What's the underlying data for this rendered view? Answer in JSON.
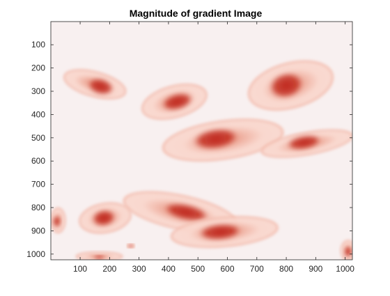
{
  "chart_data": {
    "type": "heatmap",
    "title": "Magnitude of gradient Image",
    "xlabel": "",
    "ylabel": "",
    "image_width": 1024,
    "image_height": 1024,
    "xlim": [
      0.5,
      1024.5
    ],
    "ylim": [
      0.5,
      1024.5
    ],
    "y_axis_direction": "reversed",
    "x_ticks": [
      100,
      200,
      300,
      400,
      500,
      600,
      700,
      800,
      900,
      1000
    ],
    "y_ticks": [
      100,
      200,
      300,
      400,
      500,
      600,
      700,
      800,
      900,
      1000
    ],
    "grid": false,
    "colormap": {
      "background": "#f8f0f0",
      "low": "#f9d6cc",
      "mid": "#e58872",
      "high": "#c0281c"
    },
    "regions": [
      {
        "cx": 150,
        "cy": 270,
        "rx": 110,
        "ry": 55,
        "rot": 15,
        "core_cx": 170,
        "core_cy": 280,
        "core_rx": 45,
        "core_ry": 35
      },
      {
        "cx": 420,
        "cy": 345,
        "rx": 115,
        "ry": 70,
        "rot": -15,
        "core_cx": 430,
        "core_cy": 345,
        "core_rx": 55,
        "core_ry": 35
      },
      {
        "cx": 815,
        "cy": 275,
        "rx": 150,
        "ry": 100,
        "rot": -15,
        "core_cx": 800,
        "core_cy": 275,
        "core_rx": 60,
        "core_ry": 55
      },
      {
        "cx": 585,
        "cy": 510,
        "rx": 210,
        "ry": 85,
        "rot": -8,
        "core_cx": 560,
        "core_cy": 505,
        "core_rx": 80,
        "core_ry": 45
      },
      {
        "cx": 870,
        "cy": 525,
        "rx": 160,
        "ry": 50,
        "rot": -10,
        "core_cx": 860,
        "core_cy": 520,
        "core_rx": 60,
        "core_ry": 30
      },
      {
        "cx": 440,
        "cy": 820,
        "rx": 200,
        "ry": 75,
        "rot": 12,
        "core_cx": 460,
        "core_cy": 820,
        "core_rx": 80,
        "core_ry": 35
      },
      {
        "cx": 185,
        "cy": 845,
        "rx": 90,
        "ry": 65,
        "rot": -10,
        "core_cx": 180,
        "core_cy": 845,
        "core_rx": 40,
        "core_ry": 35
      },
      {
        "cx": 590,
        "cy": 905,
        "rx": 185,
        "ry": 65,
        "rot": -5,
        "core_cx": 575,
        "core_cy": 905,
        "core_rx": 75,
        "core_ry": 35
      },
      {
        "cx": 25,
        "cy": 855,
        "rx": 25,
        "ry": 55,
        "rot": 0,
        "core_cx": 20,
        "core_cy": 860,
        "core_rx": 12,
        "core_ry": 25
      },
      {
        "cx": 1010,
        "cy": 985,
        "rx": 25,
        "ry": 45,
        "rot": 0,
        "core_cx": 1010,
        "core_cy": 990,
        "core_rx": 12,
        "core_ry": 25
      },
      {
        "cx": 165,
        "cy": 1010,
        "rx": 80,
        "ry": 20,
        "rot": 0,
        "core_cx": 165,
        "core_cy": 1015,
        "core_rx": 20,
        "core_ry": 8
      },
      {
        "cx": 272,
        "cy": 965,
        "rx": 12,
        "ry": 9,
        "rot": 0,
        "core_cx": 272,
        "core_cy": 965,
        "core_rx": 8,
        "core_ry": 6
      }
    ]
  }
}
